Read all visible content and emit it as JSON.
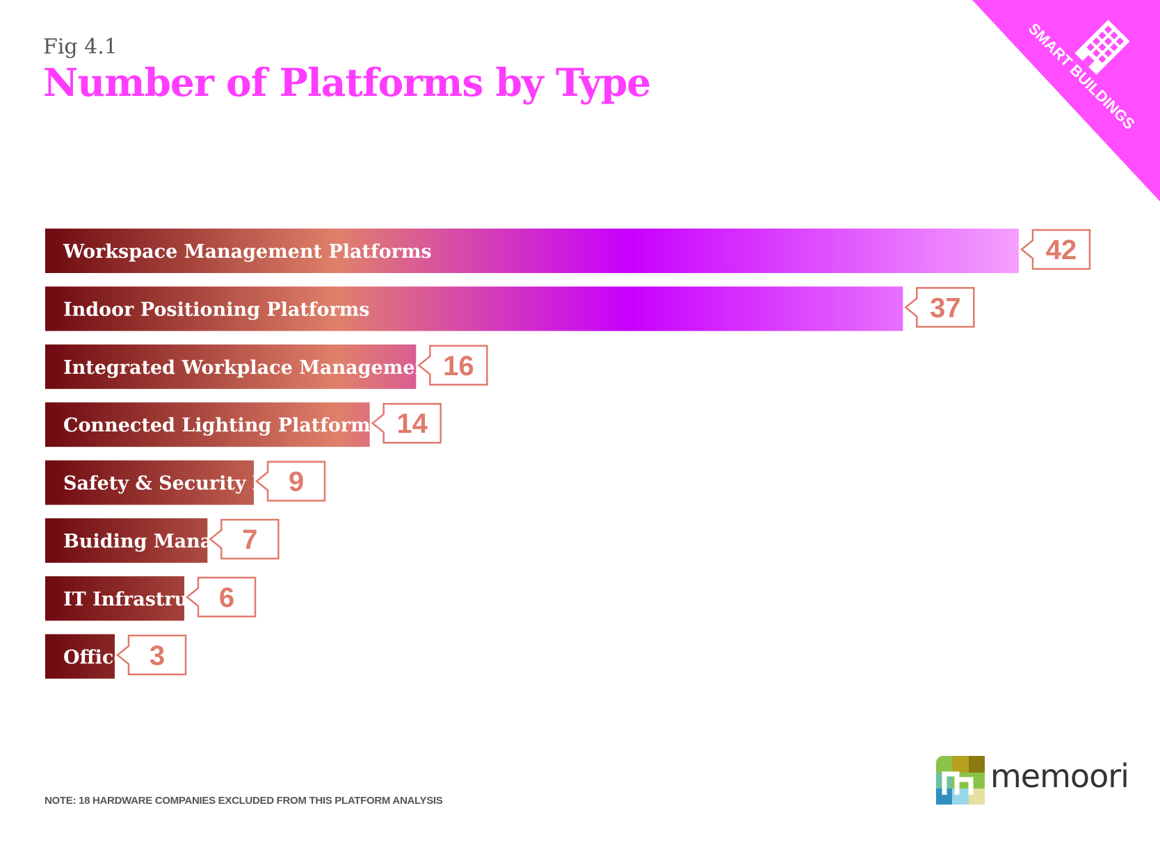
{
  "figure": {
    "label": "Fig 4.1",
    "title": "Number of Platforms by Type",
    "badge": "SMART BUILDINGS",
    "badge_icon": "building-icon",
    "note": "NOTE:  18 HARDWARE COMPANIES EXCLUDED FROM THIS PLATFORM ANALYSIS",
    "brand": "memoori",
    "brand_icon": "memoori-logo-icon"
  },
  "colors": {
    "title": "#ff3cff",
    "badge": "#ff4dff",
    "bar_start": "#6e0a10",
    "bar_mid": "#e0806a",
    "bar_peak": "#c800ff",
    "bar_end": "#f5a0ff",
    "callout": "#e07a6a",
    "bar_text": "#ffffff"
  },
  "chart_data": {
    "type": "bar",
    "orientation": "horizontal",
    "title": "Number of Platforms by Type",
    "categories": [
      "Workspace Management Platforms",
      "Indoor Positioning Platforms",
      "Integrated Workplace Management Systems",
      "Connected Lighting Platforms",
      "Safety & Security based Platforms",
      "Buiding Management System (BMS) based Platforms",
      "IT Infrastructure based Platforms",
      "Office Furniture based Platforms"
    ],
    "values": [
      42,
      37,
      16,
      14,
      9,
      7,
      6,
      3
    ],
    "xlabel": "",
    "ylabel": "",
    "grid": false,
    "legend": "none"
  }
}
